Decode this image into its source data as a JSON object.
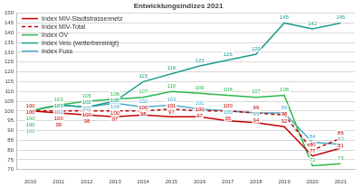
{
  "chart_data": {
    "type": "line",
    "title": "Entwicklungsindizes 2021",
    "categories": [
      "2010",
      "2011",
      "2012",
      "2013",
      "2014",
      "2015",
      "2016",
      "2017",
      "2018",
      "2019",
      "2020",
      "2021"
    ],
    "series": [
      {
        "name": "Index MIV-Stadtstrassennetz",
        "color": "#c00000",
        "line_style": "solid",
        "values": [
          100,
          99,
          98,
          97,
          98,
          97,
          97,
          95,
          94,
          92,
          77,
          81
        ]
      },
      {
        "name": "Index MIV-Total",
        "color": "#c00000",
        "line_style": "dashed",
        "values": [
          100,
          100,
          100,
          100,
          100,
          101,
          100,
          100,
          99,
          98,
          80,
          86
        ]
      },
      {
        "name": "Index ÖV",
        "color": "#2db84d",
        "line_style": "solid",
        "values": [
          100,
          103,
          105,
          106,
          107,
          110,
          109,
          108,
          107,
          108,
          72,
          73
        ]
      },
      {
        "name": "Index Velo (wetterbereinigt)",
        "color": "#1f9e8f",
        "line_style": "solid",
        "values": [
          100,
          103,
          102,
          105,
          115,
          119,
          123,
          126,
          129,
          145,
          142,
          145
        ]
      },
      {
        "name": "Index Fuss",
        "color": "#4bacc6",
        "line_style": "solid",
        "values": [
          100,
          103,
          102,
          104,
          102,
          103,
          101,
          100,
          99,
          99,
          84,
          83
        ]
      }
    ],
    "ylim": [
      70,
      150
    ],
    "yticks": [
      70,
      75,
      80,
      85,
      90,
      95,
      100,
      105,
      110,
      115,
      120,
      125,
      130,
      135,
      140,
      145,
      150
    ],
    "grid": true,
    "legend": "upper left",
    "data_labels": true
  }
}
